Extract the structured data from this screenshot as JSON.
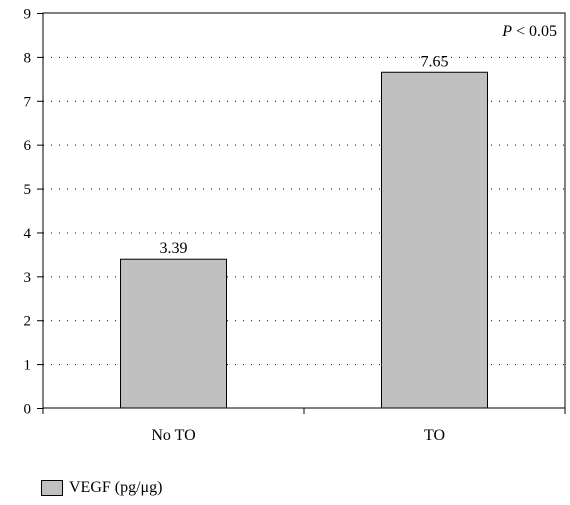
{
  "chart_data": {
    "type": "bar",
    "categories": [
      "No TO",
      "TO"
    ],
    "series": [
      {
        "name": "VEGF (pg/μg)",
        "values": [
          3.39,
          7.65
        ],
        "color": "#c0c0c0"
      }
    ],
    "data_labels": [
      "3.39",
      "7.65"
    ],
    "annotation": "P < 0.05",
    "ylim": [
      0,
      9
    ],
    "yticks": [
      0,
      1,
      2,
      3,
      4,
      5,
      6,
      7,
      8,
      9
    ],
    "grid": "horizontal dotted",
    "legend_position": "bottom-left",
    "title": "",
    "xlabel": "",
    "ylabel": ""
  }
}
